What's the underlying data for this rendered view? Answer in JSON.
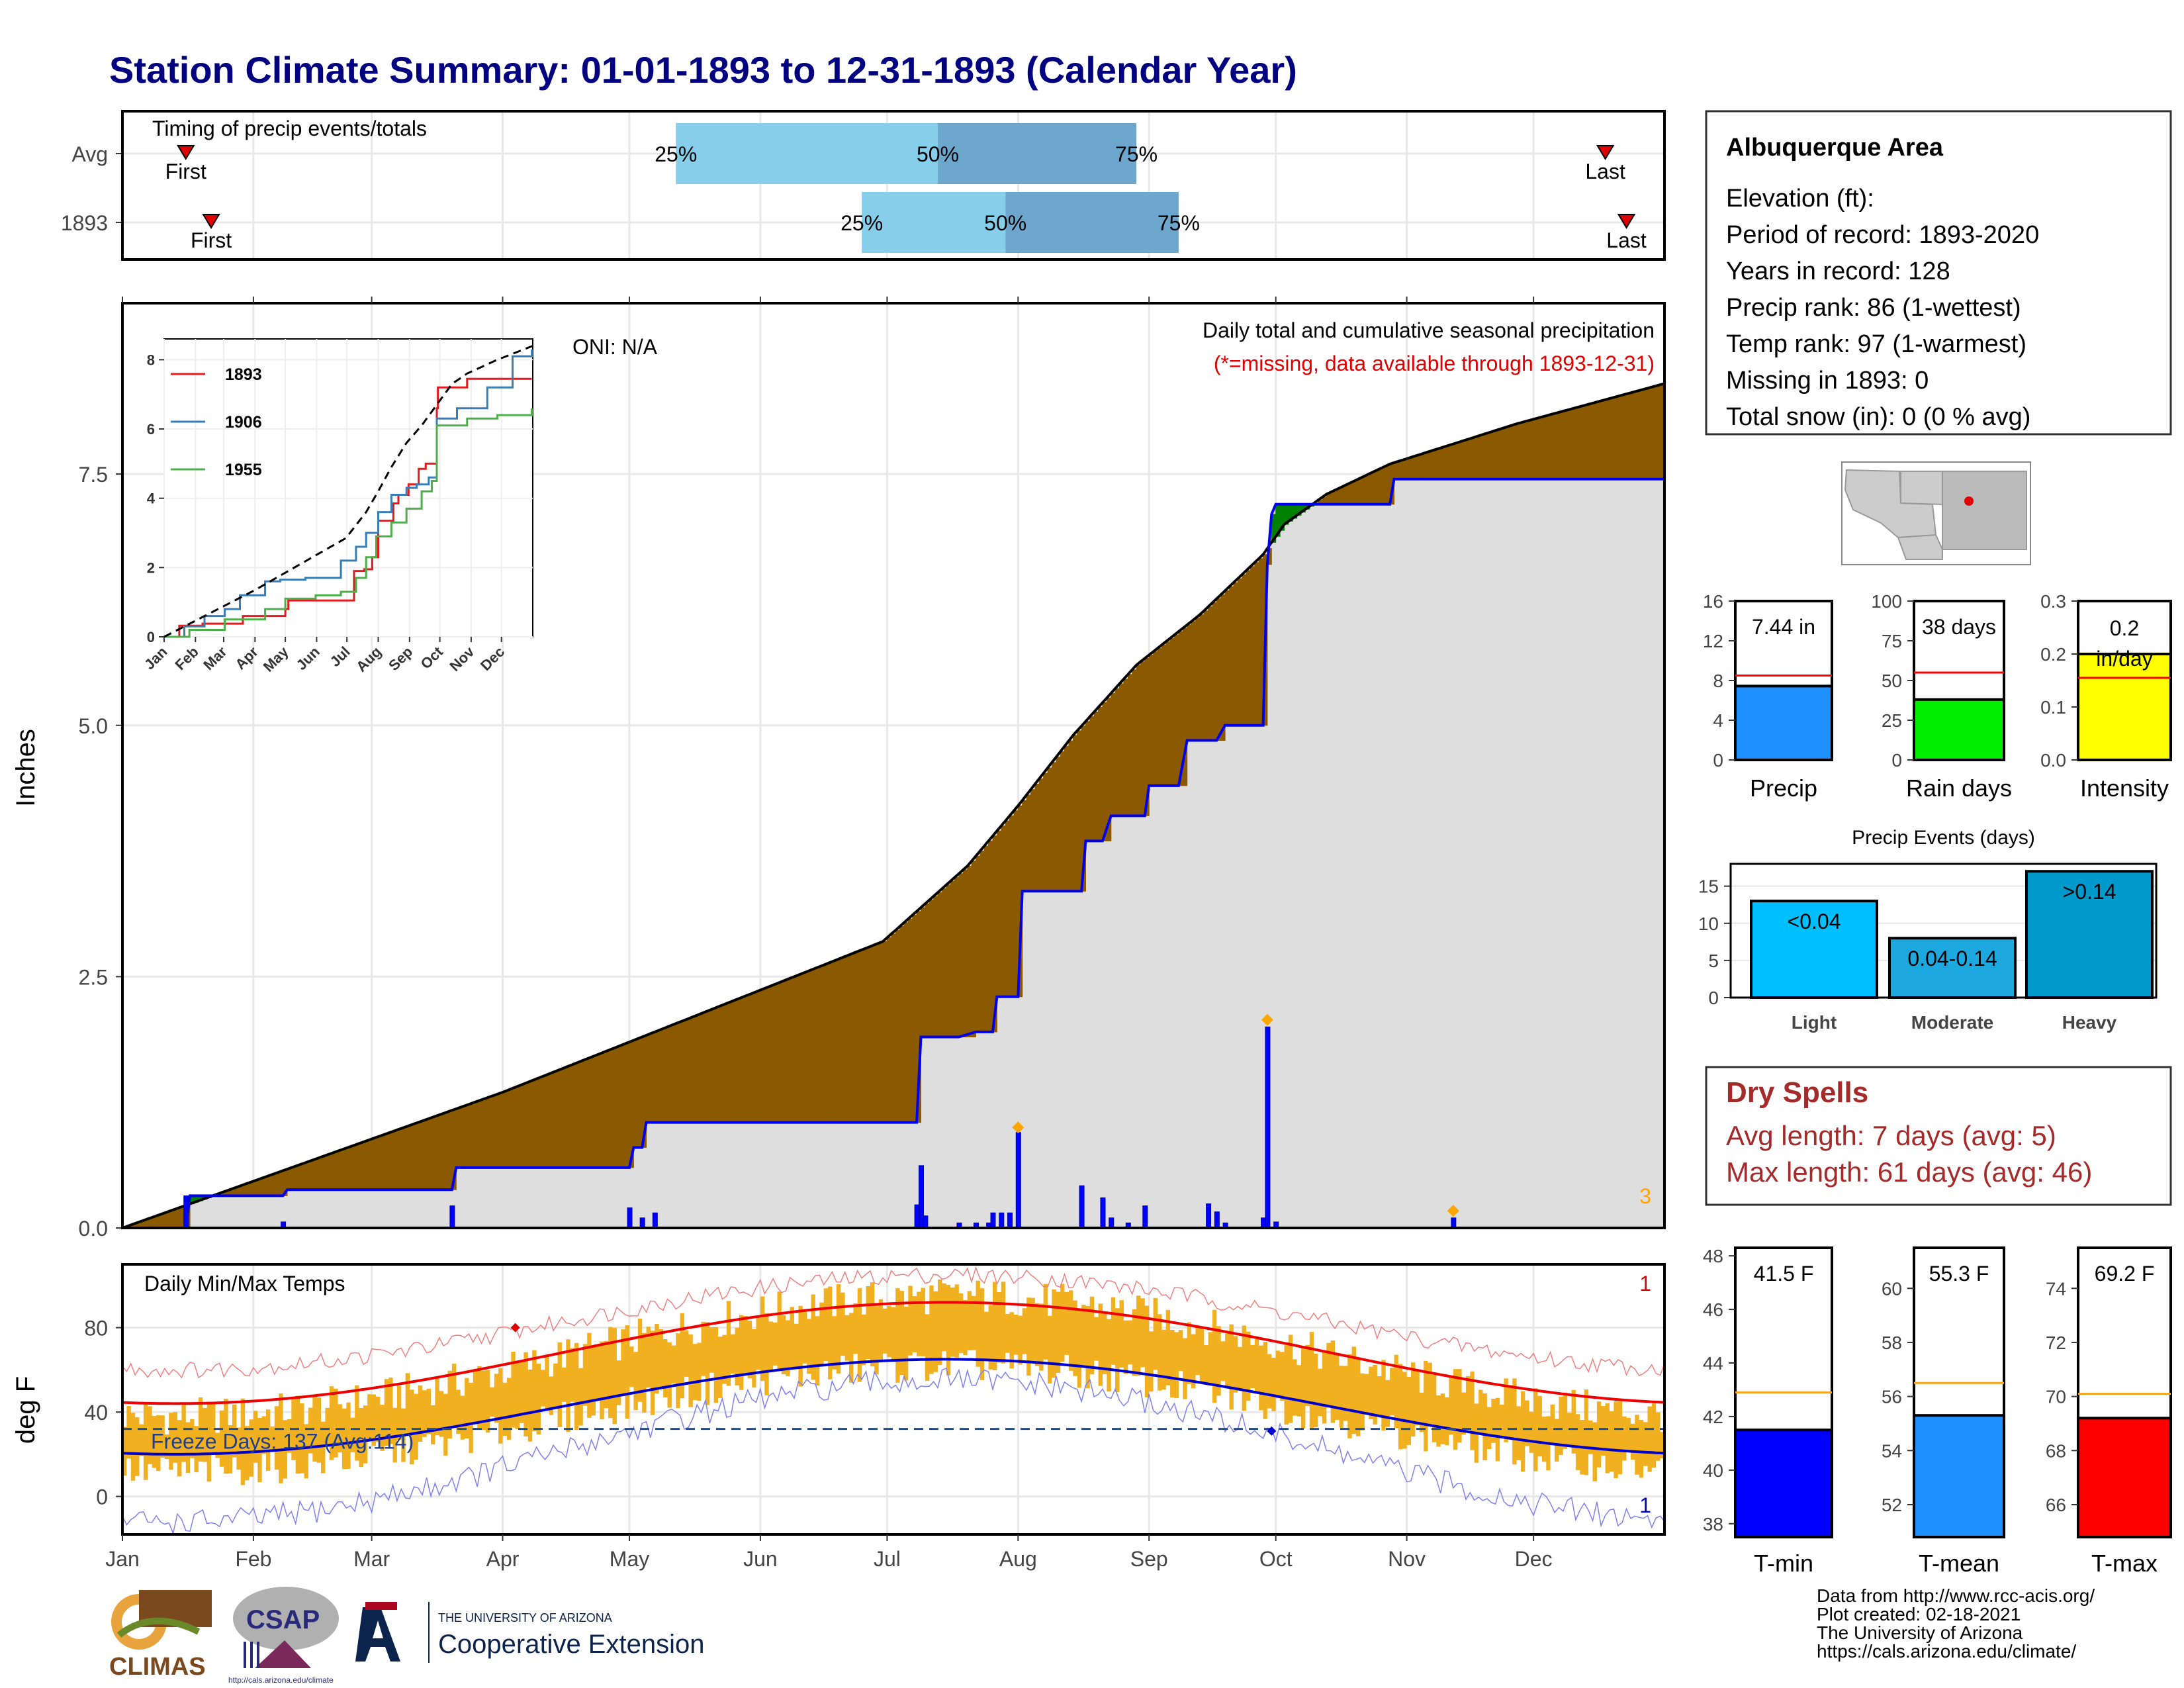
{
  "title": "Station Climate Summary: 01-01-1893 to 12-31-1893 (Calendar Year)",
  "months": [
    "Jan",
    "Feb",
    "Mar",
    "Apr",
    "May",
    "Jun",
    "Jul",
    "Aug",
    "Sep",
    "Oct",
    "Nov",
    "Dec"
  ],
  "timing": {
    "title": "Timing of precip events/totals",
    "rows": [
      {
        "label": "Avg",
        "first_label": "First",
        "last_label": "Last",
        "first_day": 15,
        "last_day": 351,
        "p25_day": 131,
        "p50_day": 193,
        "p75_day": 240,
        "p25_label": "25%",
        "p50_label": "50%",
        "p75_label": "75%"
      },
      {
        "label": "1893",
        "first_label": "First",
        "last_label": "Last",
        "first_day": 21,
        "last_day": 356,
        "p25_day": 175,
        "p50_day": 209,
        "p75_day": 250,
        "p25_label": "25%",
        "p50_label": "50%",
        "p75_label": "75%"
      }
    ]
  },
  "precip_panel": {
    "ylabel": "Inches",
    "yticks": [
      0.0,
      2.5,
      5.0,
      7.5
    ],
    "ytick_labels": [
      "0.0",
      "2.5",
      "5.0",
      "7.5"
    ],
    "ylim": [
      0,
      9.2
    ],
    "oni": "ONI: N/A",
    "label1": "Daily total and cumulative seasonal precipitation",
    "label2": "(*=missing, data available through 1893-12-31)",
    "count_label": "3",
    "avg_cumulative": {
      "days": [
        0,
        30,
        60,
        90,
        120,
        150,
        180,
        200,
        212,
        225,
        240,
        255,
        270,
        275,
        285,
        300,
        330,
        365
      ],
      "values": [
        0,
        0.45,
        0.9,
        1.35,
        1.85,
        2.35,
        2.85,
        3.6,
        4.2,
        4.9,
        5.6,
        6.1,
        6.7,
        7.0,
        7.3,
        7.6,
        8.0,
        8.4
      ]
    },
    "cumulative_1893": {
      "days": [
        0,
        15,
        16,
        38,
        39,
        78,
        79,
        120,
        121,
        123,
        124,
        188,
        189,
        198,
        202,
        206,
        207,
        212,
        213,
        227,
        228,
        232,
        234,
        242,
        243,
        250,
        252,
        259,
        261,
        270,
        271,
        272,
        273,
        300,
        301,
        364
      ],
      "values": [
        0,
        0,
        0.32,
        0.32,
        0.38,
        0.38,
        0.6,
        0.6,
        0.8,
        0.8,
        1.05,
        1.05,
        1.9,
        1.9,
        1.95,
        1.95,
        2.3,
        2.3,
        3.35,
        3.35,
        3.85,
        3.85,
        4.1,
        4.1,
        4.4,
        4.4,
        4.85,
        4.85,
        5.0,
        5.0,
        6.6,
        7.1,
        7.2,
        7.2,
        7.45,
        7.45
      ]
    },
    "daily_bars": [
      {
        "day": 15,
        "value": 0.32
      },
      {
        "day": 38,
        "value": 0.06
      },
      {
        "day": 78,
        "value": 0.22
      },
      {
        "day": 120,
        "value": 0.2
      },
      {
        "day": 123,
        "value": 0.1
      },
      {
        "day": 126,
        "value": 0.15
      },
      {
        "day": 188,
        "value": 0.23
      },
      {
        "day": 189,
        "value": 0.62
      },
      {
        "day": 190,
        "value": 0.12
      },
      {
        "day": 198,
        "value": 0.05
      },
      {
        "day": 202,
        "value": 0.05
      },
      {
        "day": 205,
        "value": 0.05
      },
      {
        "day": 206,
        "value": 0.15
      },
      {
        "day": 208,
        "value": 0.15
      },
      {
        "day": 210,
        "value": 0.15
      },
      {
        "day": 212,
        "value": 0.95
      },
      {
        "day": 227,
        "value": 0.42
      },
      {
        "day": 232,
        "value": 0.3
      },
      {
        "day": 234,
        "value": 0.1
      },
      {
        "day": 238,
        "value": 0.05
      },
      {
        "day": 242,
        "value": 0.22
      },
      {
        "day": 257,
        "value": 0.24
      },
      {
        "day": 259,
        "value": 0.16
      },
      {
        "day": 261,
        "value": 0.05
      },
      {
        "day": 270,
        "value": 0.1
      },
      {
        "day": 271,
        "value": 2.0
      },
      {
        "day": 273,
        "value": 0.06
      },
      {
        "day": 315,
        "value": 0.1
      }
    ],
    "markers": [
      {
        "day": 212,
        "value": 1.0
      },
      {
        "day": 271,
        "value": 2.07
      },
      {
        "day": 315,
        "value": 0.17
      }
    ]
  },
  "inset": {
    "yticks": [
      0,
      2,
      4,
      6,
      8
    ],
    "ytick_labels": [
      "0",
      "2",
      "4",
      "6",
      "8"
    ],
    "xtick_labels": [
      "Jan",
      "Feb",
      "Mar",
      "Apr",
      "May",
      "Jun",
      "Jul",
      "Aug",
      "Sep",
      "Oct",
      "Nov",
      "Dec"
    ],
    "avg": {
      "days": [
        0,
        30,
        60,
        90,
        120,
        150,
        180,
        200,
        212,
        225,
        240,
        255,
        270,
        285,
        300,
        330,
        365
      ],
      "values": [
        0,
        0.45,
        0.9,
        1.35,
        1.85,
        2.35,
        2.85,
        3.6,
        4.2,
        4.9,
        5.6,
        6.1,
        6.7,
        7.3,
        7.6,
        8.0,
        8.4
      ]
    },
    "series": [
      {
        "name": "1893",
        "color": "#e41a1c",
        "days": [
          0,
          15,
          38,
          78,
          120,
          123,
          188,
          198,
          206,
          212,
          227,
          232,
          242,
          252,
          259,
          270,
          271,
          300,
          364
        ],
        "values": [
          0,
          0.32,
          0.38,
          0.6,
          0.8,
          1.05,
          1.9,
          1.95,
          2.3,
          3.35,
          3.85,
          4.1,
          4.4,
          4.85,
          5.0,
          6.6,
          7.2,
          7.45,
          7.45
        ]
      },
      {
        "name": "1906",
        "color": "#377eb8",
        "days": [
          0,
          20,
          40,
          60,
          75,
          100,
          115,
          140,
          175,
          190,
          200,
          212,
          225,
          240,
          250,
          262,
          270,
          290,
          320,
          345,
          364
        ],
        "values": [
          0,
          0.3,
          0.6,
          0.8,
          1.2,
          1.6,
          1.65,
          1.7,
          2.2,
          2.6,
          3.0,
          3.6,
          4.1,
          4.3,
          4.4,
          4.6,
          6.3,
          6.6,
          7.2,
          8.1,
          8.3
        ]
      },
      {
        "name": "1955",
        "color": "#4daf4a",
        "days": [
          0,
          25,
          60,
          100,
          120,
          150,
          175,
          190,
          200,
          210,
          225,
          240,
          255,
          265,
          270,
          300,
          330,
          364
        ],
        "values": [
          0,
          0.2,
          0.5,
          0.8,
          1.1,
          1.2,
          1.3,
          1.7,
          2.3,
          2.9,
          3.3,
          3.7,
          4.2,
          4.5,
          6.1,
          6.3,
          6.4,
          6.6
        ]
      }
    ]
  },
  "temp_panel": {
    "ylabel": "deg F",
    "title": "Daily Min/Max Temps",
    "yticks": [
      0,
      40,
      80
    ],
    "ytick_labels": [
      "0",
      "40",
      "80"
    ],
    "ylim": [
      -18,
      110
    ],
    "freeze_label": "Freeze Days: 137 (Avg:114)",
    "freeze_line": 32,
    "count_top": "1",
    "count_bottom": "1",
    "tmax_avg_min": 44,
    "tmax_avg_max": 92,
    "tmin_avg_min": 20,
    "tmin_avg_max": 65,
    "record_max_lo": 60,
    "record_max_hi": 105,
    "record_min_lo": -12,
    "record_min_hi": 55,
    "obs_max_lo": 38,
    "obs_max_hi": 95,
    "obs_min_lo": 12,
    "obs_min_hi": 62,
    "peak_day": 195,
    "marker_red": {
      "day": 93,
      "value": 80
    },
    "marker_blue": {
      "day": 272,
      "value": 31
    }
  },
  "info_box": {
    "title": "Albuquerque Area",
    "lines": [
      "Elevation (ft):",
      "Period of record: 1893-2020",
      "Years in record: 128",
      "Precip rank: 86 (1-wettest)",
      "Temp rank: 97 (1-warmest)",
      "Missing in 1893: 0",
      "Total snow (in): 0 (0 % avg)"
    ]
  },
  "small_bars": [
    {
      "name": "Precip",
      "value": 7.44,
      "avg": 8.5,
      "ymax": 16,
      "yticks": [
        0,
        4,
        8,
        12,
        16
      ],
      "ytick_labels": [
        "0",
        "4",
        "8",
        "12",
        "16"
      ],
      "label": "7.44 in",
      "color": "#1e90ff"
    },
    {
      "name": "Rain days",
      "value": 38,
      "avg": 55,
      "ymax": 100,
      "yticks": [
        0,
        25,
        50,
        75,
        100
      ],
      "ytick_labels": [
        "0",
        "25",
        "50",
        "75",
        "100"
      ],
      "label": "38 days",
      "color": "#00ee00"
    },
    {
      "name": "Intensity",
      "value": 0.2,
      "avg": 0.155,
      "ymax": 0.3,
      "yticks": [
        0.0,
        0.1,
        0.2,
        0.3
      ],
      "ytick_labels": [
        "0.0",
        "0.1",
        "0.2",
        "0.3"
      ],
      "label": "0.2 in/day",
      "color": "#ffff00"
    }
  ],
  "precip_events": {
    "title": "Precip Events (days)",
    "ylim": [
      0,
      18
    ],
    "yticks": [
      0,
      5,
      10,
      15
    ],
    "ytick_labels": [
      "0",
      "5",
      "10",
      "15"
    ],
    "categories": [
      "Light",
      "Moderate",
      "Heavy"
    ],
    "values": [
      13,
      8,
      17
    ],
    "labels": [
      "<0.04",
      "0.04-0.14",
      ">0.14"
    ],
    "colors": [
      "#00bfff",
      "#1ea8e0",
      "#0099cc"
    ]
  },
  "dry_spells": {
    "title": "Dry Spells",
    "line1": "Avg length: 7 days (avg: 5)",
    "line2": "Max length: 61 days (avg: 46)"
  },
  "temp_bars": [
    {
      "name": "T-min",
      "value": 41.5,
      "avg": 42.9,
      "ylim": [
        37.5,
        48.3
      ],
      "yticks": [
        38,
        40,
        42,
        44,
        46,
        48
      ],
      "ytick_labels": [
        "38",
        "40",
        "42",
        "44",
        "46",
        "48"
      ],
      "label": "41.5 F",
      "color": "#0000ff"
    },
    {
      "name": "T-mean",
      "value": 55.3,
      "avg": 56.5,
      "ylim": [
        50.8,
        61.5
      ],
      "yticks": [
        52,
        54,
        56,
        58,
        60
      ],
      "ytick_labels": [
        "52",
        "54",
        "56",
        "58",
        "60"
      ],
      "label": "55.3 F",
      "color": "#1e90ff"
    },
    {
      "name": "T-max",
      "value": 69.2,
      "avg": 70.1,
      "ylim": [
        64.8,
        75.5
      ],
      "yticks": [
        66,
        68,
        70,
        72,
        74
      ],
      "ytick_labels": [
        "66",
        "68",
        "70",
        "72",
        "74"
      ],
      "label": "69.2 F",
      "color": "#ff0000"
    }
  ],
  "logos": {
    "climas": "CLIMAS",
    "csap": "CSAP",
    "csap_url": "http://cals.arizona.edu/climate",
    "ua_top": "THE UNIVERSITY OF ARIZONA",
    "ua_bottom": "Cooperative Extension"
  },
  "footer": [
    "Data from http://www.rcc-acis.org/",
    "Plot created: 02-18-2021",
    "The University of Arizona",
    "https://cals.arizona.edu/climate/"
  ]
}
